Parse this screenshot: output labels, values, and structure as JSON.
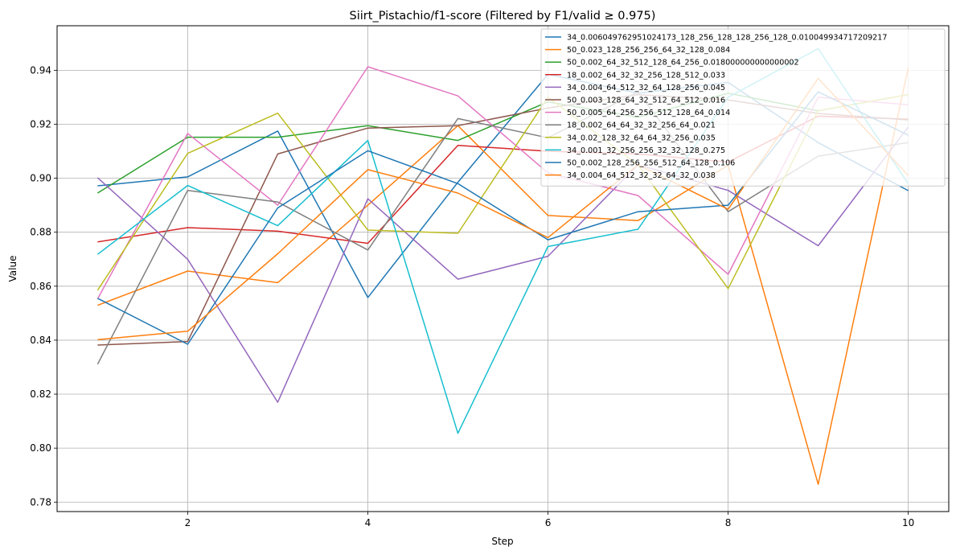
{
  "chart_data": {
    "type": "line",
    "title": "Siirt_Pistachio/f1-score (Filtered by F1/valid ≥ 0.975)",
    "xlabel": "Step",
    "ylabel": "Value",
    "xlim": [
      0.55,
      10.45
    ],
    "ylim": [
      0.7765,
      0.9565
    ],
    "x_ticks": [
      2,
      4,
      6,
      8,
      10
    ],
    "x_tick_labels": [
      "2",
      "4",
      "6",
      "8",
      "10"
    ],
    "y_ticks": [
      0.78,
      0.8,
      0.82,
      0.84,
      0.86,
      0.88,
      0.9,
      0.92,
      0.94
    ],
    "y_tick_labels": [
      "0.78",
      "0.80",
      "0.82",
      "0.84",
      "0.86",
      "0.88",
      "0.90",
      "0.92",
      "0.94"
    ],
    "grid": true,
    "legend_position": "top-right",
    "x": [
      1,
      2,
      3,
      4,
      5,
      6,
      7,
      8,
      9,
      10
    ],
    "series": [
      {
        "name": "34_0.006049762951024173_128_256_128_128_256_128_0.010049934717209217",
        "color": "#1f77b4",
        "values": [
          0.8972,
          0.9005,
          0.9175,
          0.8558,
          0.8985,
          0.9385,
          0.9315,
          0.9355,
          0.9132,
          0.8954
        ]
      },
      {
        "name": "50_0.023_128_256_256_64_32_128_0.084",
        "color": "#ff7f0e",
        "values": [
          0.8529,
          0.8656,
          0.8613,
          0.89,
          0.9195,
          0.8862,
          0.8843,
          0.9048,
          0.7866,
          0.9409
        ]
      },
      {
        "name": "50_0.002_64_32_512_128_64_256_0.018000000000000002",
        "color": "#2ca02c",
        "values": [
          0.8945,
          0.9152,
          0.9152,
          0.9195,
          0.914,
          0.9283,
          0.9226,
          0.9315,
          0.925,
          0.931
        ]
      },
      {
        "name": "18_0.002_64_32_32_256_128_512_0.033",
        "color": "#d62728",
        "values": [
          0.8764,
          0.8817,
          0.8804,
          0.8759,
          0.9122,
          0.91,
          0.909,
          0.906,
          0.923,
          0.9219
        ]
      },
      {
        "name": "34_0.004_64_512_32_64_128_256_0.045",
        "color": "#9467bd",
        "values": [
          0.9002,
          0.87,
          0.817,
          0.8924,
          0.8626,
          0.8711,
          0.905,
          0.8955,
          0.875,
          0.919
        ]
      },
      {
        "name": "50_0.003_128_64_32_512_64_512_0.016",
        "color": "#8c564b",
        "values": [
          0.8382,
          0.8395,
          0.909,
          0.9186,
          0.9195,
          0.926,
          0.931,
          0.929,
          0.924,
          0.9216
        ]
      },
      {
        "name": "50_0.005_64_256_256_512_128_64_0.014",
        "color": "#e377c2",
        "values": [
          0.8553,
          0.9166,
          0.89,
          0.9413,
          0.9305,
          0.902,
          0.8936,
          0.8644,
          0.93,
          0.9272
        ]
      },
      {
        "name": "18_0.002_64_64_32_32_256_64_0.021",
        "color": "#7f7f7f",
        "values": [
          0.8311,
          0.8955,
          0.8912,
          0.8734,
          0.9221,
          0.915,
          0.932,
          0.8876,
          0.9082,
          0.9132
        ]
      },
      {
        "name": "34_0.02_128_32_64_64_32_256_0.035",
        "color": "#bcbd22",
        "values": [
          0.8585,
          0.9092,
          0.9241,
          0.8808,
          0.8796,
          0.93,
          0.905,
          0.8591,
          0.925,
          0.931
        ]
      },
      {
        "name": "34_0.001_32_256_256_32_32_128_0.275",
        "color": "#17becf",
        "values": [
          0.8718,
          0.8973,
          0.8824,
          0.914,
          0.8055,
          0.8747,
          0.8811,
          0.93,
          0.948,
          0.898
        ]
      },
      {
        "name": "50_0.002_128_256_256_512_64_128_0.106",
        "color": "#1f77b4",
        "values": [
          0.8555,
          0.8385,
          0.889,
          0.9102,
          0.898,
          0.8772,
          0.8876,
          0.89,
          0.932,
          0.916
        ]
      },
      {
        "name": "34_0.004_64_512_32_32_64_32_0.038",
        "color": "#ff7f0e",
        "values": [
          0.8402,
          0.8433,
          0.872,
          0.9032,
          0.8945,
          0.878,
          0.905,
          0.8885,
          0.937,
          0.901
        ]
      }
    ]
  }
}
